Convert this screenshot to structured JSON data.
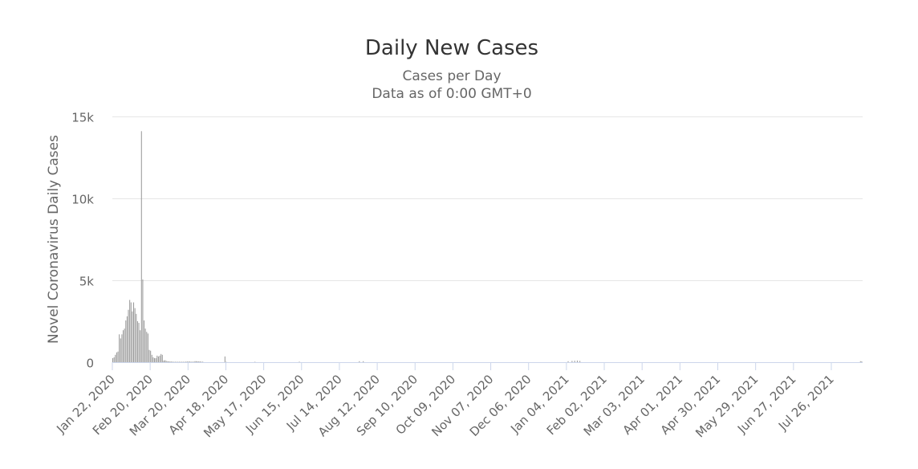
{
  "chart_data": {
    "type": "bar",
    "title": "Daily New Cases",
    "subtitle_lines": [
      "Cases per Day",
      "Data as of 0:00 GMT+0"
    ],
    "ylabel": "Novel Coronavirus Daily Cases",
    "xlabel": "",
    "ylim": [
      0,
      15000
    ],
    "yticks": [
      {
        "value": 0,
        "label": "0"
      },
      {
        "value": 5000,
        "label": "5k"
      },
      {
        "value": 10000,
        "label": "10k"
      },
      {
        "value": 15000,
        "label": "15k"
      }
    ],
    "x_start": "2020-01-22",
    "x_end": "2021-08-19",
    "xtick_labels": [
      {
        "date": "2020-01-22",
        "label": "Jan 22, 2020"
      },
      {
        "date": "2020-02-20",
        "label": "Feb 20, 2020"
      },
      {
        "date": "2020-03-20",
        "label": "Mar 20, 2020"
      },
      {
        "date": "2020-04-18",
        "label": "Apr 18, 2020"
      },
      {
        "date": "2020-05-17",
        "label": "May 17, 2020"
      },
      {
        "date": "2020-06-15",
        "label": "Jun 15, 2020"
      },
      {
        "date": "2020-07-14",
        "label": "Jul 14, 2020"
      },
      {
        "date": "2020-08-12",
        "label": "Aug 12, 2020"
      },
      {
        "date": "2020-09-10",
        "label": "Sep 10, 2020"
      },
      {
        "date": "2020-10-09",
        "label": "Oct 09, 2020"
      },
      {
        "date": "2020-11-07",
        "label": "Nov 07, 2020"
      },
      {
        "date": "2020-12-06",
        "label": "Dec 06, 2020"
      },
      {
        "date": "2021-01-04",
        "label": "Jan 04, 2021"
      },
      {
        "date": "2021-02-02",
        "label": "Feb 02, 2021"
      },
      {
        "date": "2021-03-03",
        "label": "Mar 03, 2021"
      },
      {
        "date": "2021-04-01",
        "label": "Apr 01, 2021"
      },
      {
        "date": "2021-04-30",
        "label": "Apr 30, 2021"
      },
      {
        "date": "2021-05-29",
        "label": "May 29, 2021"
      },
      {
        "date": "2021-06-27",
        "label": "Jun 27, 2021"
      },
      {
        "date": "2021-07-26",
        "label": "Jul 26, 2021"
      }
    ],
    "series": [
      {
        "bar_color": "#999999",
        "data": [
          [
            "2020-01-22",
            250
          ],
          [
            "2020-01-23",
            300
          ],
          [
            "2020-01-24",
            450
          ],
          [
            "2020-01-25",
            600
          ],
          [
            "2020-01-26",
            650
          ],
          [
            "2020-01-27",
            1700
          ],
          [
            "2020-01-28",
            1450
          ],
          [
            "2020-01-29",
            1700
          ],
          [
            "2020-01-30",
            1950
          ],
          [
            "2020-01-31",
            2050
          ],
          [
            "2020-02-01",
            2550
          ],
          [
            "2020-02-02",
            2800
          ],
          [
            "2020-02-03",
            3200
          ],
          [
            "2020-02-04",
            3800
          ],
          [
            "2020-02-05",
            3650
          ],
          [
            "2020-02-06",
            3100
          ],
          [
            "2020-02-07",
            3650
          ],
          [
            "2020-02-08",
            3300
          ],
          [
            "2020-02-09",
            2950
          ],
          [
            "2020-02-10",
            2500
          ],
          [
            "2020-02-11",
            2400
          ],
          [
            "2020-02-12",
            1950
          ],
          [
            "2020-02-13",
            14100
          ],
          [
            "2020-02-14",
            5050
          ],
          [
            "2020-02-15",
            2550
          ],
          [
            "2020-02-16",
            2050
          ],
          [
            "2020-02-17",
            1850
          ],
          [
            "2020-02-18",
            1750
          ],
          [
            "2020-02-19",
            750
          ],
          [
            "2020-02-20",
            700
          ],
          [
            "2020-02-21",
            450
          ],
          [
            "2020-02-22",
            300
          ],
          [
            "2020-02-23",
            250
          ],
          [
            "2020-02-24",
            250
          ],
          [
            "2020-02-25",
            400
          ],
          [
            "2020-02-26",
            350
          ],
          [
            "2020-02-27",
            400
          ],
          [
            "2020-02-28",
            500
          ],
          [
            "2020-02-29",
            450
          ],
          [
            "2020-03-01",
            100
          ],
          [
            "2020-03-02",
            120
          ],
          [
            "2020-03-03",
            80
          ],
          [
            "2020-03-04",
            60
          ],
          [
            "2020-03-05",
            50
          ],
          [
            "2020-03-06",
            40
          ],
          [
            "2020-03-07",
            40
          ],
          [
            "2020-03-08",
            30
          ],
          [
            "2020-03-09",
            20
          ],
          [
            "2020-03-10",
            20
          ],
          [
            "2020-03-11",
            15
          ],
          [
            "2020-03-12",
            15
          ],
          [
            "2020-03-13",
            10
          ],
          [
            "2020-03-14",
            10
          ],
          [
            "2020-03-15",
            10
          ],
          [
            "2020-03-16",
            15
          ],
          [
            "2020-03-17",
            15
          ],
          [
            "2020-03-18",
            30
          ],
          [
            "2020-03-19",
            40
          ],
          [
            "2020-03-20",
            40
          ],
          [
            "2020-03-21",
            40
          ],
          [
            "2020-03-22",
            30
          ],
          [
            "2020-03-23",
            30
          ],
          [
            "2020-03-24",
            30
          ],
          [
            "2020-03-25",
            60
          ],
          [
            "2020-03-26",
            60
          ],
          [
            "2020-03-27",
            50
          ],
          [
            "2020-03-28",
            50
          ],
          [
            "2020-03-29",
            40
          ],
          [
            "2020-03-30",
            30
          ],
          [
            "2020-03-31",
            30
          ],
          [
            "2020-04-17",
            350
          ],
          [
            "2020-04-18",
            25
          ],
          [
            "2020-05-10",
            20
          ],
          [
            "2020-06-13",
            30
          ],
          [
            "2020-07-29",
            60
          ],
          [
            "2020-08-01",
            60
          ],
          [
            "2021-01-05",
            60
          ],
          [
            "2021-01-08",
            80
          ],
          [
            "2021-01-10",
            90
          ],
          [
            "2021-01-12",
            100
          ],
          [
            "2021-01-14",
            80
          ],
          [
            "2021-08-17",
            60
          ],
          [
            "2021-08-18",
            50
          ]
        ]
      }
    ],
    "grid": true,
    "legend": "none"
  }
}
